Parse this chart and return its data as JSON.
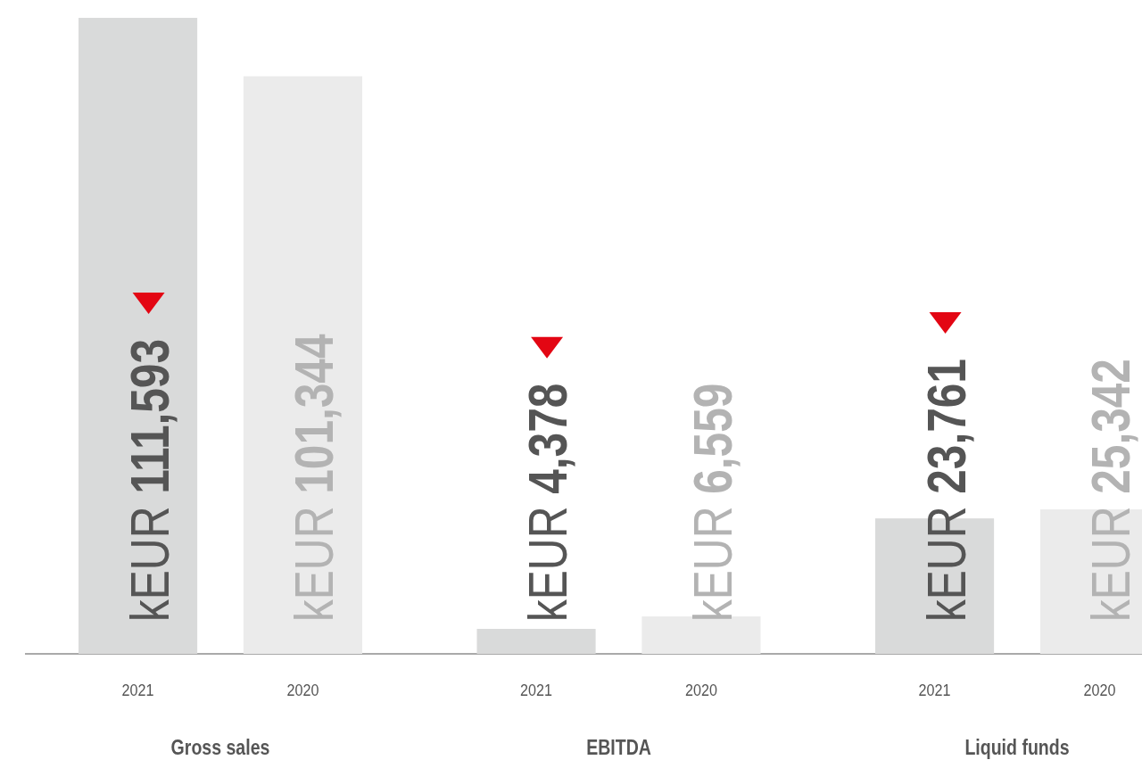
{
  "chart_data": [
    {
      "type": "bar",
      "xlabel": "Gross sales",
      "categories": [
        "2021",
        "2020"
      ],
      "values": [
        111593,
        101344
      ],
      "colors": [
        "#d9dada",
        "#ebebeb"
      ],
      "value_labels": [
        "kEUR 111,593",
        "kEUR 101,344"
      ],
      "tick_labels": "x"
    },
    {
      "type": "bar",
      "xlabel": "EBITDA",
      "categories": [
        "2021",
        "2020"
      ],
      "values": [
        4378,
        6559
      ],
      "colors": [
        "#d9dada",
        "#ebebeb"
      ],
      "value_labels": [
        "kEUR 4,378",
        "kEUR 6,559"
      ],
      "tick_labels": "x"
    },
    {
      "type": "bar",
      "xlabel": "Liquid funds",
      "categories": [
        "2021",
        "2020"
      ],
      "values": [
        23761,
        25342
      ],
      "colors": [
        "#d9dada",
        "#ebebeb"
      ],
      "value_labels": [
        "kEUR 23,761",
        "kEUR 25,342"
      ],
      "tick_labels": "x"
    }
  ]
}
